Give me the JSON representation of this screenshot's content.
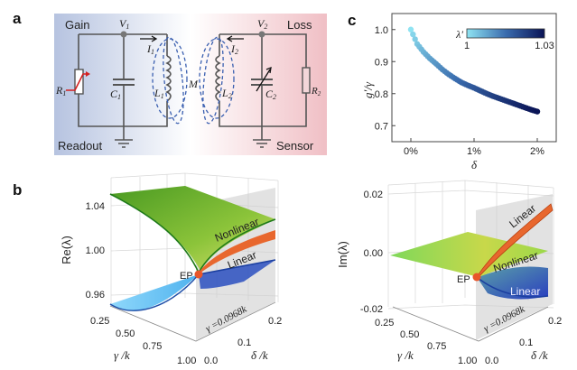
{
  "panels": {
    "a": "a",
    "b": "b",
    "c": "c"
  },
  "circuit": {
    "gain": "Gain",
    "loss": "Loss",
    "readout": "Readout",
    "sensor": "Sensor",
    "V1": {
      "base": "V",
      "sub": "1"
    },
    "V2": {
      "base": "V",
      "sub": "2"
    },
    "I1": {
      "base": "I",
      "sub": "1"
    },
    "I2": {
      "base": "I",
      "sub": "2"
    },
    "L1": {
      "base": "L",
      "sub": "1"
    },
    "L2": {
      "base": "L",
      "sub": "2"
    },
    "C1": {
      "base": "C",
      "sub": "1"
    },
    "C2": {
      "base": "C",
      "sub": "2"
    },
    "R1": {
      "base": "R",
      "sub": "1"
    },
    "R2": {
      "base": "R",
      "sub": "2"
    },
    "M": "M",
    "colors": {
      "gain_bg": "#b9c6e2",
      "loss_bg": "#f1c3c8",
      "arrow": "#d42020",
      "field_lines": "#3a5fb0"
    }
  },
  "chart_data": [
    {
      "type": "surface",
      "ylabel": "Re(λ)",
      "yticks": [
        "1.04",
        "1.00",
        "0.96"
      ],
      "xlabel": "γ /k",
      "xticks": [
        "0.25",
        "0.50",
        "0.75",
        "1.00"
      ],
      "zlabel": "δ /k",
      "zticks": [
        "0.0",
        "0.1",
        "0.2"
      ],
      "annotations": {
        "nonlinear": "Nonlinear",
        "linear": "Linear",
        "ep": "EP",
        "plane": "γ =0.0968k"
      },
      "colors": {
        "nonlinear": "#6ab52e",
        "linear_upper": "#e8672e",
        "linear_lower": "#2a4fc0",
        "lower_surface": "#7fcdf5",
        "ep": "#e8562a",
        "plane": "#cfcfcf"
      }
    },
    {
      "type": "surface",
      "ylabel": "Im(λ)",
      "yticks": [
        "0.02",
        "0.00",
        "-0.02"
      ],
      "xlabel": "γ /k",
      "xticks": [
        "0.25",
        "0.50",
        "0.75",
        "1.00"
      ],
      "zlabel": "δ /k",
      "zticks": [
        "0.0",
        "0.1",
        "0.2"
      ],
      "annotations": {
        "linear_upper": "Linear",
        "nonlinear": "Nonlinear",
        "linear_lower": "Linear",
        "ep": "EP",
        "plane": "γ =0.0968k"
      },
      "colors": {
        "nonlinear": "#8fd24a",
        "linear_upper": "#e8672e",
        "linear_lower": "#2e4fb8",
        "ep": "#e8562a",
        "plane": "#cfcfcf"
      }
    },
    {
      "type": "scatter",
      "xlabel": "δ",
      "ylabel": "g′/γ",
      "xticks": [
        "0%",
        "1%",
        "2%"
      ],
      "yticks": [
        "0.7",
        "0.8",
        "0.9",
        "1.0"
      ],
      "xlim": [
        -0.3,
        2.3
      ],
      "ylim": [
        0.65,
        1.05
      ],
      "x": [
        0,
        0.1,
        0.2,
        0.3,
        0.4,
        0.5,
        0.6,
        0.7,
        0.8,
        0.9,
        1.0,
        1.1,
        1.2,
        1.3,
        1.4,
        1.5,
        1.6,
        1.7,
        1.8,
        1.9,
        2.0
      ],
      "y": [
        1.0,
        0.955,
        0.93,
        0.91,
        0.893,
        0.875,
        0.86,
        0.847,
        0.835,
        0.826,
        0.818,
        0.809,
        0.8,
        0.792,
        0.785,
        0.778,
        0.771,
        0.764,
        0.757,
        0.75,
        0.744
      ],
      "colorbar": {
        "label": "λ′",
        "min": "1",
        "max": "1.03",
        "color_low": "#8fe3f2",
        "color_high": "#0a1456"
      }
    }
  ]
}
